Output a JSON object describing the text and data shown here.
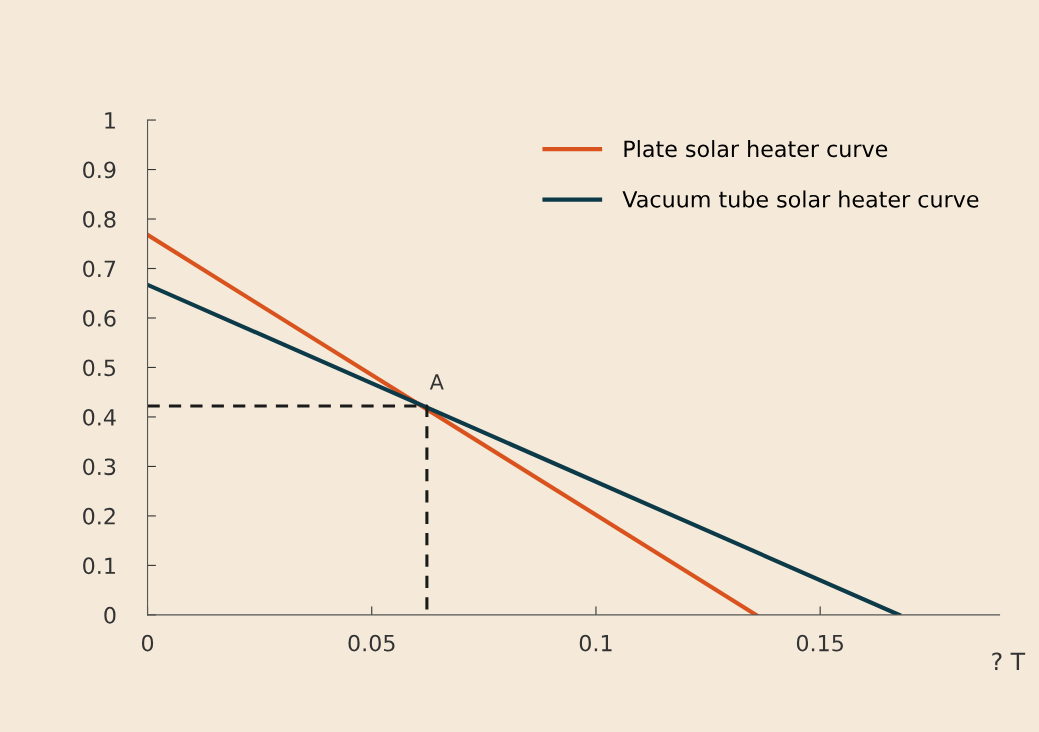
{
  "chart_data": {
    "type": "line",
    "xlabel": "? T",
    "series": [
      {
        "name": "Plate solar heater curve",
        "color": "#d9531e",
        "x": [
          0,
          0.1357
        ],
        "values": [
          0.768,
          0
        ]
      },
      {
        "name": "Vacuum tube solar heater curve",
        "color": "#0d3a48",
        "x": [
          0,
          0.1676
        ],
        "values": [
          0.667,
          0
        ]
      },
      {
        "color": "#1a1a1a",
        "line_style": "dashed",
        "x": [
          0,
          0.0623,
          0.0623
        ],
        "values": [
          0.422,
          0.422,
          0
        ]
      }
    ],
    "annotations": [
      {
        "text": "A",
        "x": 0.0623,
        "y": 0.422
      }
    ],
    "xlim": [
      0,
      0.19
    ],
    "ylim": [
      0,
      1
    ],
    "xticks": [
      0,
      0.05,
      0.1,
      0.15
    ],
    "yticks": [
      0,
      0.1,
      0.2,
      0.3,
      0.4,
      0.5,
      0.6,
      0.7,
      0.8,
      0.9,
      1
    ],
    "legend": "top right",
    "grid": false,
    "marker": "none",
    "line_style": "solid"
  }
}
